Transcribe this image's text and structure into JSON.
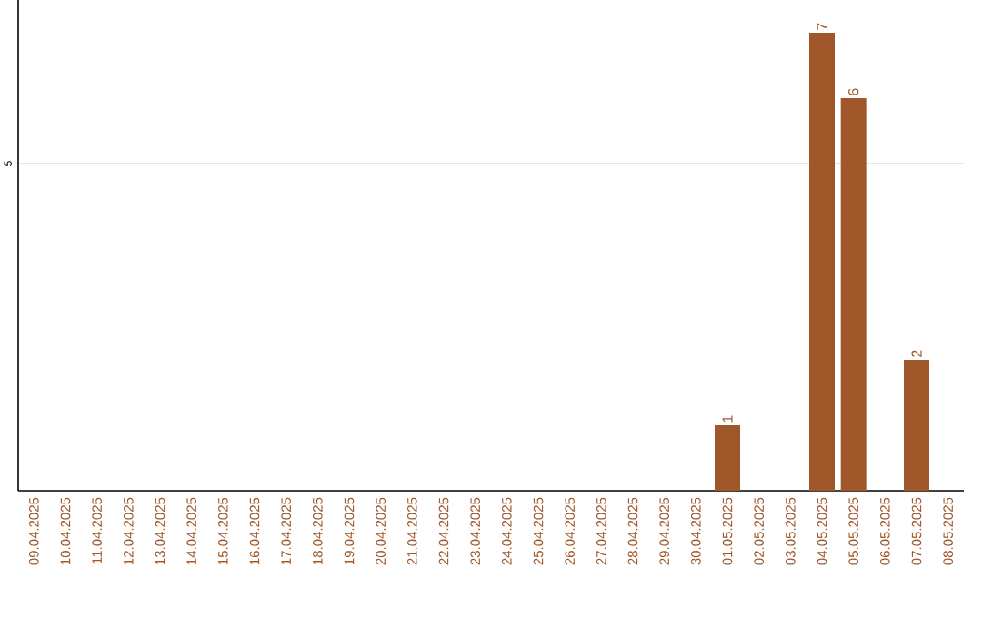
{
  "chart_data": {
    "type": "bar",
    "categories": [
      "09.04.2025",
      "10.04.2025",
      "11.04.2025",
      "12.04.2025",
      "13.04.2025",
      "14.04.2025",
      "15.04.2025",
      "16.04.2025",
      "17.04.2025",
      "18.04.2025",
      "19.04.2025",
      "20.04.2025",
      "21.04.2025",
      "22.04.2025",
      "23.04.2025",
      "24.04.2025",
      "25.04.2025",
      "26.04.2025",
      "27.04.2025",
      "28.04.2025",
      "29.04.2025",
      "30.04.2025",
      "01.05.2025",
      "02.05.2025",
      "03.05.2025",
      "04.05.2025",
      "05.05.2025",
      "06.05.2025",
      "07.05.2025",
      "08.05.2025"
    ],
    "values": [
      null,
      null,
      null,
      null,
      null,
      null,
      null,
      null,
      null,
      null,
      null,
      null,
      null,
      null,
      null,
      null,
      null,
      null,
      null,
      null,
      null,
      null,
      1,
      null,
      null,
      7,
      6,
      null,
      2,
      null
    ],
    "data_labels": true,
    "color": "#a0582a",
    "ylim": [
      0,
      7.5
    ],
    "yticks": [
      5
    ],
    "grid": "y"
  }
}
